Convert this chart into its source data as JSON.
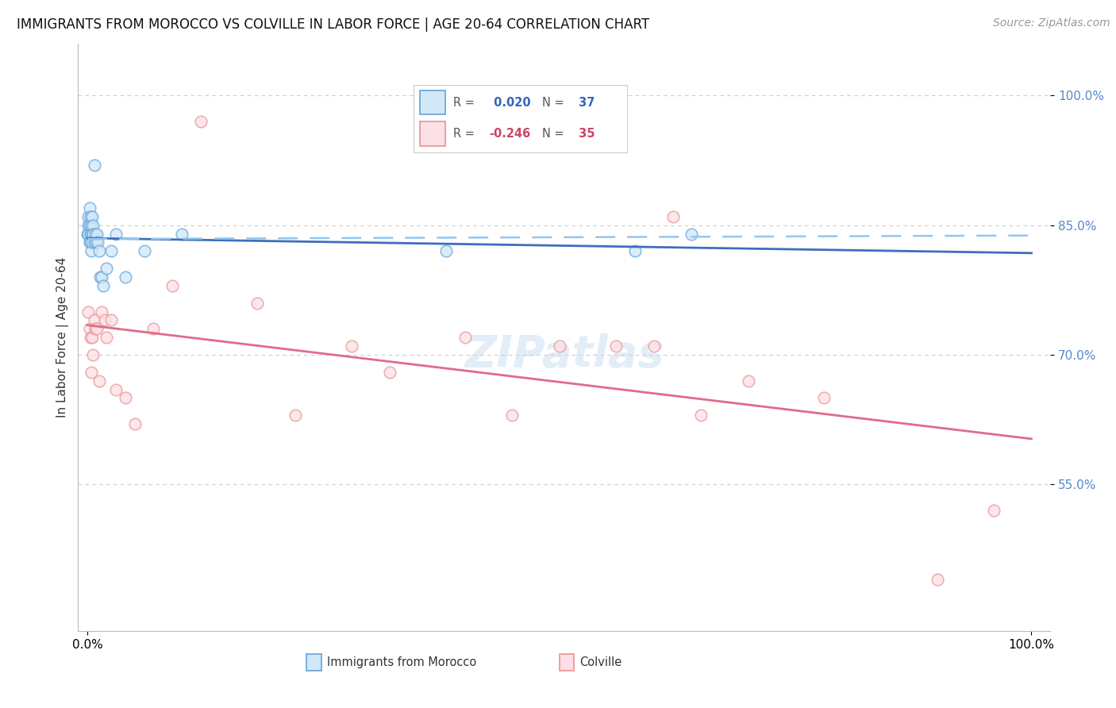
{
  "title": "IMMIGRANTS FROM MOROCCO VS COLVILLE IN LABOR FORCE | AGE 20-64 CORRELATION CHART",
  "source": "Source: ZipAtlas.com",
  "ylabel": "In Labor Force | Age 20-64",
  "ytick_values": [
    1.0,
    0.85,
    0.7,
    0.55
  ],
  "xlim": [
    0.0,
    1.0
  ],
  "ylim": [
    0.38,
    1.06
  ],
  "watermark": "ZIPatlas",
  "morocco_R": 0.02,
  "morocco_N": 37,
  "colville_R": -0.246,
  "colville_N": 35,
  "morocco_color": "#6fa8dc",
  "colville_color": "#ea9999",
  "morocco_line_color": "#3d6fbe",
  "colville_line_color": "#e06c8a",
  "morocco_dash_color": "#93c6f0",
  "grid_color": "#cccccc",
  "morocco_x": [
    0.0,
    0.001,
    0.001,
    0.001,
    0.002,
    0.002,
    0.002,
    0.003,
    0.003,
    0.003,
    0.003,
    0.004,
    0.004,
    0.005,
    0.005,
    0.005,
    0.006,
    0.006,
    0.007,
    0.007,
    0.008,
    0.009,
    0.01,
    0.011,
    0.012,
    0.013,
    0.015,
    0.017,
    0.02,
    0.025,
    0.03,
    0.04,
    0.06,
    0.1,
    0.38,
    0.58,
    0.64
  ],
  "morocco_y": [
    0.84,
    0.86,
    0.85,
    0.84,
    0.85,
    0.83,
    0.87,
    0.84,
    0.86,
    0.83,
    0.84,
    0.85,
    0.82,
    0.84,
    0.86,
    0.83,
    0.85,
    0.84,
    0.83,
    0.92,
    0.84,
    0.83,
    0.84,
    0.83,
    0.82,
    0.79,
    0.79,
    0.78,
    0.8,
    0.82,
    0.84,
    0.79,
    0.82,
    0.84,
    0.82,
    0.82,
    0.84
  ],
  "colville_x": [
    0.001,
    0.002,
    0.003,
    0.004,
    0.005,
    0.006,
    0.007,
    0.008,
    0.01,
    0.012,
    0.015,
    0.018,
    0.02,
    0.025,
    0.03,
    0.04,
    0.05,
    0.07,
    0.09,
    0.12,
    0.18,
    0.22,
    0.28,
    0.32,
    0.4,
    0.45,
    0.5,
    0.56,
    0.6,
    0.62,
    0.65,
    0.7,
    0.78,
    0.9,
    0.96
  ],
  "colville_y": [
    0.75,
    0.73,
    0.72,
    0.68,
    0.72,
    0.7,
    0.74,
    0.73,
    0.73,
    0.67,
    0.75,
    0.74,
    0.72,
    0.74,
    0.66,
    0.65,
    0.62,
    0.73,
    0.78,
    0.97,
    0.76,
    0.63,
    0.71,
    0.68,
    0.72,
    0.63,
    0.71,
    0.71,
    0.71,
    0.86,
    0.63,
    0.67,
    0.65,
    0.44,
    0.52
  ],
  "background_color": "#ffffff",
  "title_fontsize": 12,
  "axis_label_fontsize": 11,
  "tick_fontsize": 11,
  "source_fontsize": 10,
  "watermark_fontsize": 40
}
